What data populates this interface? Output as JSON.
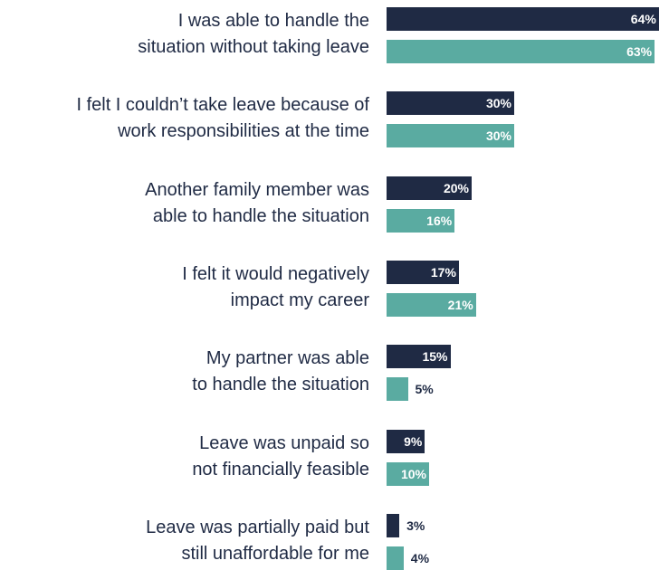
{
  "chart_data": {
    "type": "bar",
    "orientation": "horizontal",
    "categories": [
      [
        "I was able to handle the",
        "situation without taking leave"
      ],
      [
        "I felt I couldn’t take leave because of",
        "work responsibilities at the time"
      ],
      [
        "Another family member was",
        "able to handle the situation"
      ],
      [
        "I felt it would negatively",
        "impact my career"
      ],
      [
        "My partner was able",
        "to handle the situation"
      ],
      [
        "Leave was unpaid so",
        "not financially feasible"
      ],
      [
        "Leave was partially paid but",
        "still unaffordable for me"
      ]
    ],
    "series": [
      {
        "color": "#1f2a44",
        "values": [
          64,
          30,
          20,
          17,
          15,
          9,
          3
        ],
        "labels": [
          "64%",
          "30%",
          "20%",
          "17%",
          "15%",
          "9%",
          "3%"
        ]
      },
      {
        "color": "#5aaba1",
        "values": [
          63,
          30,
          16,
          21,
          5,
          10,
          4
        ],
        "labels": [
          "63%",
          "30%",
          "16%",
          "21%",
          "5%",
          "10%",
          "4%"
        ]
      }
    ],
    "xlim": [
      0,
      100
    ],
    "grid": false,
    "legend": "none"
  }
}
